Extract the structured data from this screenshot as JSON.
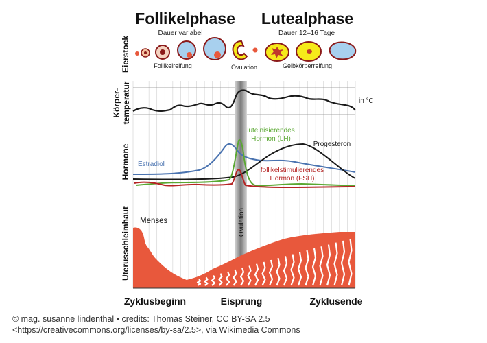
{
  "phases": {
    "follicular": {
      "title": "Follikelphase",
      "subtitle": "Dauer variabel"
    },
    "luteal": {
      "title": "Lutealphase",
      "subtitle": "Dauer 12–16 Tage"
    }
  },
  "row_labels": {
    "ovary": "Eierstock",
    "temperature_line1": "Körper-",
    "temperature_line2": "temperatur",
    "hormones": "Hormone",
    "endometrium": "Uterusschleimhaut"
  },
  "ovary_labels": {
    "maturation": "Follikelreifung",
    "ovulation": "Ovulation",
    "corpus_luteum": "Gelbkörperreifung"
  },
  "temperature": {
    "unit_label": "in °C"
  },
  "hormones": {
    "estradiol": "Estradiol",
    "lh_line1": "luteinisierendes",
    "lh_line2": "Hormon (LH)",
    "progesterone": "Progesteron",
    "fsh_line1": "follikelstimulierendes",
    "fsh_line2": "Hormon (FSH)"
  },
  "endometrium": {
    "menses": "Menses",
    "ovulation_band": "Ovulation"
  },
  "x_axis": {
    "start": "Zyklusbeginn",
    "middle": "Eisprung",
    "end": "Zyklusende"
  },
  "caption": {
    "line1": "© mag. susanne lindenthal • credits: Thomas Steiner, CC BY-SA 2.5",
    "line2": "<https://creativecommons.org/licenses/by-sa/2.5>, via Wikimedia Commons"
  },
  "colors": {
    "estradiol": "#4a73b0",
    "lh": "#5aa832",
    "progesterone": "#1a1a1a",
    "fsh": "#b52424",
    "endometrium": "#e8583c",
    "corpus_luteum_fill": "#f6ea1a",
    "follicle_fill": "#a8d0ee",
    "ovary_outline": "#8b1a1a"
  }
}
